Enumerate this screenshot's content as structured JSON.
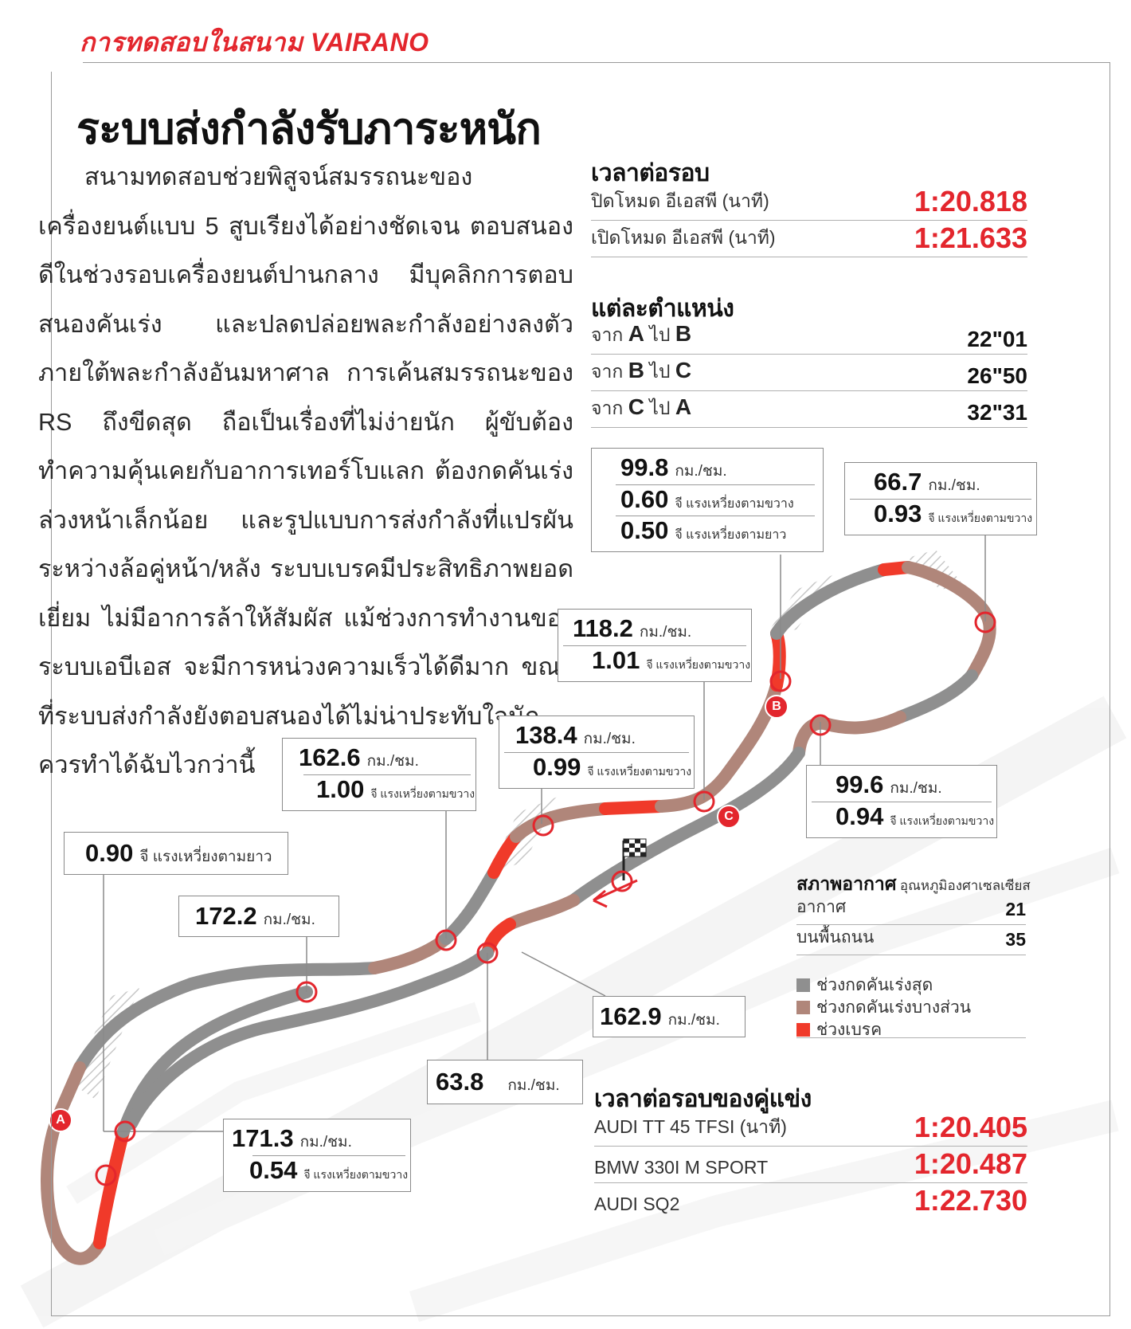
{
  "header": {
    "kicker": "การทดสอบในสนาม VAIRANO",
    "headline": "ระบบส่งกำลังรับภาระหนัก"
  },
  "article": {
    "body": "สนามทดสอบช่วยพิสูจน์สมรรถนะของเครื่องยนต์แบบ 5 สูบเรียงได้อย่างชัดเจน ตอบสนองดีในช่วงรอบเครื่องยนต์ปานกลาง มีบุคลิกการตอบสนองคันเร่ง และปลดปล่อยพละกำลังอย่างลงตัว ภายใต้พละกำลังอันมหาศาล การเค้นสมรรถนะของ RS ถึงขีดสุด ถือเป็นเรื่องที่ไม่ง่ายนัก ผู้ขับต้องทำความคุ้นเคยกับอาการเทอร์โบแลก ต้องกดคันเร่งล่วงหน้าเล็กน้อย และรูปแบบการส่งกำลังที่แปรผันระหว่างล้อคู่หน้า/หลัง ระบบเบรคมีประสิทธิภาพยอดเยี่ยม ไม่มีอาการล้าให้สัมผัส แม้ช่วงการทำงานของระบบเอบีเอส จะมีการหน่วงความเร็วได้ดีมาก ขณะที่ระบบส่งกำลังยังตอบสนองได้ไม่น่าประทับใจนัก ควรทำได้ฉับไวกว่านี้"
  },
  "lap_times": {
    "title": "เวลาต่อรอบ",
    "rows": [
      {
        "label": "ปิดโหมด อีเอสพี (นาที)",
        "value": "1:20.818"
      },
      {
        "label": "เปิดโหมด อีเอสพี (นาที)",
        "value": "1:21.633"
      }
    ]
  },
  "sectors": {
    "title": "แต่ละตำแหน่ง",
    "rows": [
      {
        "pre": "จาก",
        "from": "A",
        "mid": "ไป",
        "to": "B",
        "value": "22\"01"
      },
      {
        "pre": "จาก",
        "from": "B",
        "mid": "ไป",
        "to": "C",
        "value": "26\"50"
      },
      {
        "pre": "จาก",
        "from": "C",
        "mid": "ไป",
        "to": "A",
        "value": "32\"31"
      }
    ]
  },
  "callouts": {
    "c1": {
      "v1": "99.8",
      "u1": "กม./ชม.",
      "v2": "0.60",
      "u2": "จี แรงเหวี่ยงตามขวาง",
      "v3": "0.50",
      "u3": "จี แรงเหวี่ยงตามยาว"
    },
    "c2": {
      "v1": "66.7",
      "u1": "กม./ชม.",
      "v2": "0.93",
      "u2": "จี แรงเหวี่ยงตามขวาง"
    },
    "c3": {
      "v1": "118.2",
      "u1": "กม./ชม.",
      "v2": "1.01",
      "u2": "จี แรงเหวี่ยงตามขวาง"
    },
    "c4": {
      "v1": "138.4",
      "u1": "กม./ชม.",
      "v2": "0.99",
      "u2": "จี แรงเหวี่ยงตามขวาง"
    },
    "c5": {
      "v1": "162.6",
      "u1": "กม./ชม.",
      "v2": "1.00",
      "u2": "จี แรงเหวี่ยงตามขวาง"
    },
    "c6": {
      "v1": "99.6",
      "u1": "กม./ชม.",
      "v2": "0.94",
      "u2": "จี แรงเหวี่ยงตามขวาง"
    },
    "c7": {
      "v1": "0.90",
      "u1": "จี แรงเหวี่ยงตามยาว"
    },
    "c8": {
      "v1": "172.2",
      "u1": "กม./ชม."
    },
    "c9": {
      "v1": "162.9",
      "u1": "กม./ชม."
    },
    "c10": {
      "v1": "63.8",
      "u1": "กม./ชม."
    },
    "c11": {
      "v1": "171.3",
      "u1": "กม./ชม.",
      "v2": "0.54",
      "u2": "จี แรงเหวี่ยงตามขวาง"
    }
  },
  "markers": {
    "a": "A",
    "b": "B",
    "c": "C"
  },
  "weather": {
    "title": "สภาพอากาศ",
    "subtitle": "อุณหภูมิองศาเซลเซียส",
    "rows": [
      {
        "label": "อากาศ",
        "value": "21"
      },
      {
        "label": "บนพื้นถนน",
        "value": "35"
      }
    ]
  },
  "legend": {
    "items": [
      {
        "label": "ช่วงกดคันเร่งสุด",
        "color": "#8f8f8f"
      },
      {
        "label": "ช่วงกดคันเร่งบางส่วน",
        "color": "#b0867a"
      },
      {
        "label": "ช่วงเบรค",
        "color": "#f03a2a"
      }
    ]
  },
  "rivals": {
    "title": "เวลาต่อรอบของคู่แข่ง",
    "rows": [
      {
        "label": "AUDI TT 45 TFSI (นาที)",
        "value": "1:20.405"
      },
      {
        "label": "BMW 330I M SPORT",
        "value": "1:20.487"
      },
      {
        "label": "AUDI SQ2",
        "value": "1:22.730"
      }
    ]
  },
  "colors": {
    "accent": "#e3262d",
    "full_throttle": "#8f8f8f",
    "partial_throttle": "#b0867a",
    "braking": "#f03a2a"
  }
}
